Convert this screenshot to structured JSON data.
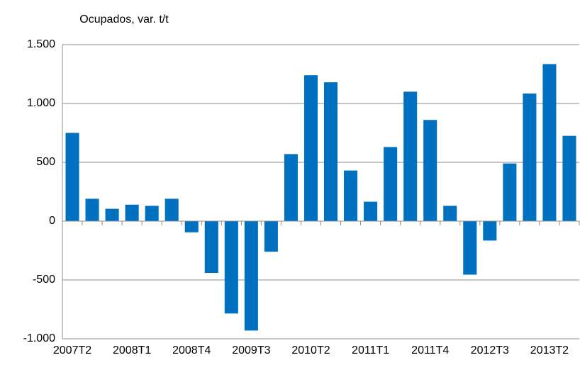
{
  "chart_data": {
    "type": "bar",
    "title": "Ocupados, var. t/t",
    "categories": [
      "2007T2",
      null,
      null,
      "2008T1",
      null,
      null,
      "2008T4",
      null,
      null,
      "2009T3",
      null,
      null,
      "2010T2",
      null,
      null,
      "2011T1",
      null,
      null,
      "2011T4",
      null,
      null,
      "2012T3",
      null,
      null,
      "2013T2",
      null
    ],
    "values": [
      750,
      190,
      105,
      140,
      130,
      190,
      -95,
      -440,
      -785,
      -930,
      -260,
      570,
      1240,
      1180,
      430,
      165,
      630,
      1100,
      860,
      130,
      -455,
      -165,
      490,
      1085,
      1335,
      725
    ],
    "color": "#0070c0",
    "ylim": [
      -1000,
      1500
    ],
    "yticks": [
      {
        "value": -1000,
        "label": "-1.000"
      },
      -500,
      0,
      500,
      {
        "value": 1000,
        "label": "1.000"
      },
      {
        "value": 1500,
        "label": "1.500"
      }
    ],
    "grid": true
  }
}
